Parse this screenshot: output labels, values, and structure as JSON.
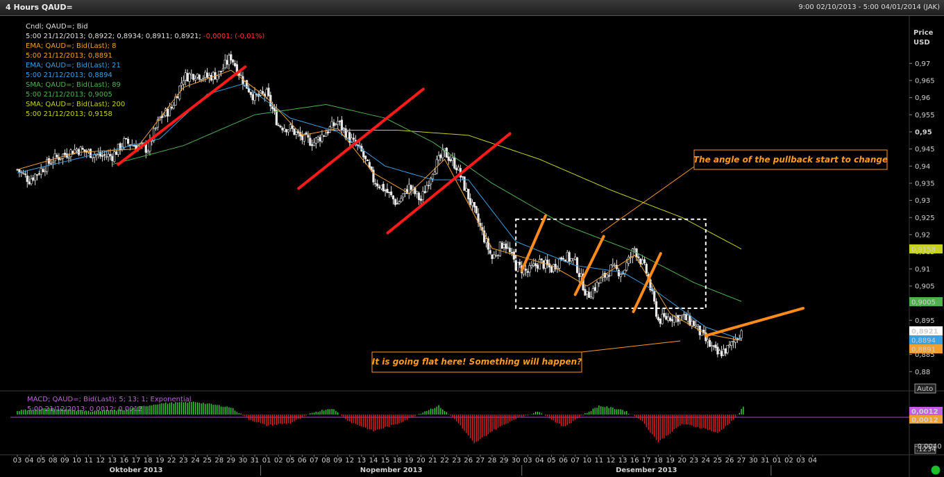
{
  "window": {
    "title": "4 Hours QAUD=",
    "date_range": "9:00 02/10/2013 - 5:00 04/01/2014 (JAK)"
  },
  "price_axis": {
    "label_line1": "Price",
    "label_line2": "USD",
    "auto_button": "Auto",
    "macd_button": ".1234"
  },
  "legend": [
    {
      "text": "Cndl; QAUD=; Bid",
      "color": "#e0e0e0"
    },
    {
      "text": "5:00 21/12/2013; 0,8922; 0,8934; 0,8911; 0,8921;",
      "color": "#e0e0e0",
      "extra": " -0,0001; (-0,01%)",
      "extra_color": "#ff3030"
    },
    {
      "text": "EMA; QAUD=; Bid(Last);  8",
      "color": "#f0a030"
    },
    {
      "text": "5:00 21/12/2013; 0,8891",
      "color": "#f0a030"
    },
    {
      "text": "EMA; QAUD=; Bid(Last);  21",
      "color": "#3aa0e0"
    },
    {
      "text": "5:00 21/12/2013; 0,8894",
      "color": "#3aa0e0"
    },
    {
      "text": "SMA; QAUD=; Bid(Last);  89",
      "color": "#50b050"
    },
    {
      "text": "5:00 21/12/2013; 0,9005",
      "color": "#50b050"
    },
    {
      "text": "SMA; QAUD=; Bid(Last);  200",
      "color": "#c8d020"
    },
    {
      "text": "5:00 21/12/2013; 0,9158",
      "color": "#c8d020"
    }
  ],
  "macd_legend": [
    {
      "text": "MACD; QAUD=; Bid(Last);  5; 13; 1; Exponential",
      "color": "#c060e0"
    },
    {
      "text": "5:00 21/12/2013; 0,0012; 0,0012",
      "color": "#c060e0"
    }
  ],
  "annotations": {
    "pullback": "The angle of the pullback start to change",
    "flat": "It is going flat here! Something will happen?"
  },
  "badges": [
    {
      "text": "0,9158",
      "bg": "#c8d020",
      "fg": "#000",
      "value": 0.9158
    },
    {
      "text": "0,9005",
      "bg": "#50b050",
      "fg": "#000",
      "value": 0.9005
    },
    {
      "text": "0,8921",
      "bg": "#ffffff",
      "fg": "#000",
      "value": 0.8921
    },
    {
      "text": "0,8894",
      "bg": "#3aa0e0",
      "fg": "#000",
      "value": 0.8894
    },
    {
      "text": "0,8891",
      "bg": "#f0a030",
      "fg": "#000",
      "value": 0.8891
    }
  ],
  "macd_badges": [
    {
      "text": "0,0012",
      "bg": "#c060e0",
      "fg": "#000"
    },
    {
      "text": "0,0012",
      "bg": "#f0a030",
      "fg": "#000"
    }
  ],
  "chart_data": {
    "type": "line",
    "price_ylim": [
      0.876,
      0.981
    ],
    "price_ticks": [
      "0,97",
      "0,965",
      "0,96",
      "0,955",
      "0,95",
      "0,945",
      "0,94",
      "0,935",
      "0,93",
      "0,925",
      "0,92",
      "0,915",
      "0,91",
      "0,905",
      "0,9",
      "0,895",
      "0,89",
      "0,885",
      "0,88"
    ],
    "price_tick_values": [
      0.97,
      0.965,
      0.96,
      0.955,
      0.95,
      0.945,
      0.94,
      0.935,
      0.93,
      0.925,
      0.92,
      0.915,
      0.91,
      0.905,
      0.9,
      0.895,
      0.89,
      0.885,
      0.88
    ],
    "macd_ylim": [
      -0.0045,
      0.0022
    ],
    "macd_ticks": [
      {
        "label": "-0,0040",
        "value": -0.004
      }
    ],
    "x_days": [
      "03",
      "04",
      "05",
      "08",
      "09",
      "10",
      "11",
      "12",
      "13",
      "16",
      "17",
      "18",
      "19",
      "22",
      "23",
      "24",
      "25",
      "28",
      "29",
      "30",
      "31",
      "01",
      "02",
      "05",
      "06",
      "07",
      "08",
      "09",
      "12",
      "13",
      "14",
      "15",
      "18",
      "19",
      "20",
      "21",
      "22",
      "23",
      "26",
      "27",
      "28",
      "29",
      "30",
      "03",
      "04",
      "05",
      "06",
      "07",
      "10",
      "11",
      "12",
      "13",
      "16",
      "17",
      "18",
      "19",
      "20",
      "23",
      "24",
      "25",
      "26",
      "27",
      "30",
      "31",
      "01",
      "02",
      "03",
      "04"
    ],
    "months": [
      {
        "label": "Oktober 2013",
        "start_index": 0,
        "end_index": 21
      },
      {
        "label": "Nopember 2013",
        "start_index": 21,
        "end_index": 43
      },
      {
        "label": "Desember 2013",
        "start_index": 43,
        "end_index": 64
      }
    ],
    "close_keypoints": [
      {
        "i": 0,
        "v": 0.939
      },
      {
        "i": 1,
        "v": 0.936
      },
      {
        "i": 3,
        "v": 0.942
      },
      {
        "i": 5,
        "v": 0.945
      },
      {
        "i": 6,
        "v": 0.944
      },
      {
        "i": 7,
        "v": 0.943
      },
      {
        "i": 8,
        "v": 0.943
      },
      {
        "i": 9,
        "v": 0.947
      },
      {
        "i": 11,
        "v": 0.945
      },
      {
        "i": 12,
        "v": 0.954
      },
      {
        "i": 13,
        "v": 0.957
      },
      {
        "i": 14,
        "v": 0.966
      },
      {
        "i": 15,
        "v": 0.967
      },
      {
        "i": 16,
        "v": 0.966
      },
      {
        "i": 17,
        "v": 0.967
      },
      {
        "i": 18,
        "v": 0.972
      },
      {
        "i": 19,
        "v": 0.965
      },
      {
        "i": 20,
        "v": 0.96
      },
      {
        "i": 21,
        "v": 0.961
      },
      {
        "i": 22,
        "v": 0.952
      },
      {
        "i": 23,
        "v": 0.951
      },
      {
        "i": 24,
        "v": 0.948
      },
      {
        "i": 25,
        "v": 0.947
      },
      {
        "i": 26,
        "v": 0.95
      },
      {
        "i": 27,
        "v": 0.953
      },
      {
        "i": 28,
        "v": 0.948
      },
      {
        "i": 29,
        "v": 0.944
      },
      {
        "i": 30,
        "v": 0.936
      },
      {
        "i": 31,
        "v": 0.933
      },
      {
        "i": 32,
        "v": 0.929
      },
      {
        "i": 33,
        "v": 0.934
      },
      {
        "i": 34,
        "v": 0.93
      },
      {
        "i": 35,
        "v": 0.939
      },
      {
        "i": 36,
        "v": 0.944
      },
      {
        "i": 37,
        "v": 0.94
      },
      {
        "i": 38,
        "v": 0.931
      },
      {
        "i": 39,
        "v": 0.922
      },
      {
        "i": 40,
        "v": 0.913
      },
      {
        "i": 41,
        "v": 0.918
      },
      {
        "i": 42,
        "v": 0.911
      },
      {
        "i": 43,
        "v": 0.909
      },
      {
        "i": 44,
        "v": 0.912
      },
      {
        "i": 45,
        "v": 0.91
      },
      {
        "i": 46,
        "v": 0.914
      },
      {
        "i": 47,
        "v": 0.912
      },
      {
        "i": 48,
        "v": 0.902
      },
      {
        "i": 49,
        "v": 0.906
      },
      {
        "i": 50,
        "v": 0.91
      },
      {
        "i": 51,
        "v": 0.909
      },
      {
        "i": 52,
        "v": 0.916
      },
      {
        "i": 53,
        "v": 0.909
      },
      {
        "i": 54,
        "v": 0.895
      },
      {
        "i": 55,
        "v": 0.896
      },
      {
        "i": 56,
        "v": 0.896
      },
      {
        "i": 57,
        "v": 0.894
      },
      {
        "i": 58,
        "v": 0.889
      },
      {
        "i": 59,
        "v": 0.885
      },
      {
        "i": 60,
        "v": 0.887
      },
      {
        "i": 61,
        "v": 0.892
      }
    ],
    "ema8_keypoints": [
      {
        "i": 0,
        "v": 0.939
      },
      {
        "i": 5,
        "v": 0.944
      },
      {
        "i": 10,
        "v": 0.945
      },
      {
        "i": 14,
        "v": 0.963
      },
      {
        "i": 18,
        "v": 0.968
      },
      {
        "i": 21,
        "v": 0.96
      },
      {
        "i": 24,
        "v": 0.949
      },
      {
        "i": 27,
        "v": 0.951
      },
      {
        "i": 30,
        "v": 0.938
      },
      {
        "i": 33,
        "v": 0.932
      },
      {
        "i": 36,
        "v": 0.942
      },
      {
        "i": 40,
        "v": 0.916
      },
      {
        "i": 45,
        "v": 0.911
      },
      {
        "i": 48,
        "v": 0.905
      },
      {
        "i": 52,
        "v": 0.914
      },
      {
        "i": 55,
        "v": 0.897
      },
      {
        "i": 58,
        "v": 0.891
      },
      {
        "i": 61,
        "v": 0.8891
      }
    ],
    "ema21_keypoints": [
      {
        "i": 0,
        "v": 0.938
      },
      {
        "i": 6,
        "v": 0.943
      },
      {
        "i": 12,
        "v": 0.948
      },
      {
        "i": 16,
        "v": 0.961
      },
      {
        "i": 19,
        "v": 0.964
      },
      {
        "i": 23,
        "v": 0.954
      },
      {
        "i": 27,
        "v": 0.95
      },
      {
        "i": 31,
        "v": 0.94
      },
      {
        "i": 35,
        "v": 0.936
      },
      {
        "i": 38,
        "v": 0.936
      },
      {
        "i": 42,
        "v": 0.918
      },
      {
        "i": 47,
        "v": 0.911
      },
      {
        "i": 51,
        "v": 0.909
      },
      {
        "i": 54,
        "v": 0.903
      },
      {
        "i": 58,
        "v": 0.893
      },
      {
        "i": 61,
        "v": 0.8894
      }
    ],
    "sma89_keypoints": [
      {
        "i": 8,
        "v": 0.9405
      },
      {
        "i": 14,
        "v": 0.946
      },
      {
        "i": 20,
        "v": 0.955
      },
      {
        "i": 26,
        "v": 0.958
      },
      {
        "i": 31,
        "v": 0.954
      },
      {
        "i": 35,
        "v": 0.947
      },
      {
        "i": 40,
        "v": 0.935
      },
      {
        "i": 46,
        "v": 0.923
      },
      {
        "i": 52,
        "v": 0.915
      },
      {
        "i": 57,
        "v": 0.906
      },
      {
        "i": 61,
        "v": 0.9005
      }
    ],
    "sma200_keypoints": [
      {
        "i": 26,
        "v": 0.9505
      },
      {
        "i": 32,
        "v": 0.9505
      },
      {
        "i": 38,
        "v": 0.949
      },
      {
        "i": 44,
        "v": 0.942
      },
      {
        "i": 50,
        "v": 0.933
      },
      {
        "i": 56,
        "v": 0.925
      },
      {
        "i": 61,
        "v": 0.9158
      }
    ],
    "macd_keypoints": [
      {
        "i": 0,
        "v": 0.0005
      },
      {
        "i": 3,
        "v": 0.0008
      },
      {
        "i": 6,
        "v": 0.0004
      },
      {
        "i": 9,
        "v": 0.0006
      },
      {
        "i": 12,
        "v": 0.0014
      },
      {
        "i": 15,
        "v": 0.0016
      },
      {
        "i": 18,
        "v": 0.0009
      },
      {
        "i": 19.5,
        "v": -0.0006
      },
      {
        "i": 21,
        "v": -0.0014
      },
      {
        "i": 23,
        "v": -0.0011
      },
      {
        "i": 25,
        "v": 0.0003
      },
      {
        "i": 26.5,
        "v": 0.0008
      },
      {
        "i": 28,
        "v": -0.0009
      },
      {
        "i": 30,
        "v": -0.0021
      },
      {
        "i": 32,
        "v": -0.0012
      },
      {
        "i": 34,
        "v": 0.0002
      },
      {
        "i": 35.5,
        "v": 0.0011
      },
      {
        "i": 37,
        "v": -0.0008
      },
      {
        "i": 38.5,
        "v": -0.0037
      },
      {
        "i": 40,
        "v": -0.0021
      },
      {
        "i": 42,
        "v": -0.0005
      },
      {
        "i": 44,
        "v": 0.0004
      },
      {
        "i": 46,
        "v": -0.0016
      },
      {
        "i": 47.5,
        "v": -0.0002
      },
      {
        "i": 49,
        "v": 0.0011
      },
      {
        "i": 51,
        "v": 0.0006
      },
      {
        "i": 52.5,
        "v": -0.0006
      },
      {
        "i": 54,
        "v": -0.0035
      },
      {
        "i": 56,
        "v": -0.0012
      },
      {
        "i": 58,
        "v": -0.0018
      },
      {
        "i": 59,
        "v": -0.0024
      },
      {
        "i": 60.5,
        "v": -0.0004
      },
      {
        "i": 61.3,
        "v": 0.0012
      }
    ],
    "red_trendlines": [
      {
        "i1": 8.5,
        "v1": 0.9405,
        "i2": 19.2,
        "v2": 0.969
      },
      {
        "i1": 23.7,
        "v1": 0.9335,
        "i2": 34.2,
        "v2": 0.9625
      },
      {
        "i1": 31.2,
        "v1": 0.9205,
        "i2": 41.5,
        "v2": 0.9495
      }
    ],
    "orange_trendlines": [
      {
        "i1": 42.5,
        "v1": 0.9095,
        "i2": 44.5,
        "v2": 0.9255
      },
      {
        "i1": 47.0,
        "v1": 0.9025,
        "i2": 49.4,
        "v2": 0.9195
      },
      {
        "i1": 51.9,
        "v1": 0.8975,
        "i2": 54.2,
        "v2": 0.9145
      },
      {
        "i1": 58.0,
        "v1": 0.8905,
        "i2": 66.2,
        "v2": 0.8985
      }
    ],
    "box": {
      "i1": 42.0,
      "i2": 58.0,
      "v_top": 0.9245,
      "v_bottom": 0.8985
    }
  }
}
